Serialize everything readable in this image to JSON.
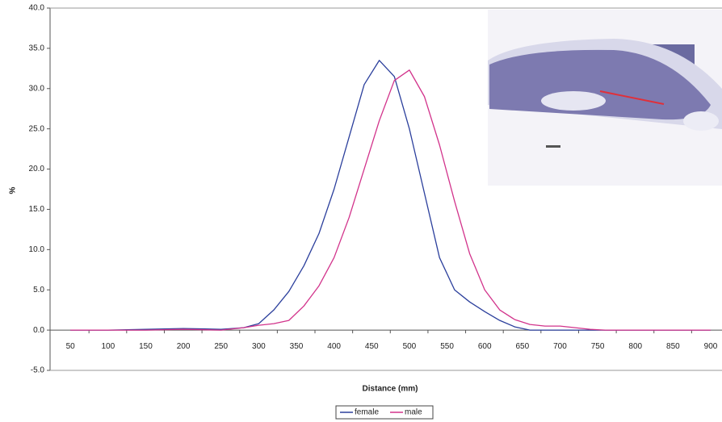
{
  "chart_data": {
    "type": "line",
    "xlabel": "Distance (mm)",
    "ylabel": "%",
    "x": [
      50,
      100,
      150,
      200,
      250,
      280,
      300,
      320,
      340,
      360,
      380,
      400,
      420,
      440,
      460,
      480,
      500,
      520,
      540,
      560,
      580,
      600,
      620,
      640,
      660,
      680,
      700,
      720,
      740,
      760,
      800,
      900
    ],
    "series": [
      {
        "name": "female",
        "color": "#2b3f9c",
        "values": [
          0,
          0,
          0.1,
          0.2,
          0.1,
          0.3,
          0.8,
          2.5,
          4.8,
          8,
          12,
          17.5,
          24,
          30.5,
          33.5,
          31.5,
          25,
          17,
          9,
          5,
          3.5,
          2.3,
          1.2,
          0.4,
          0,
          0,
          0,
          0,
          0,
          0,
          0,
          0
        ]
      },
      {
        "name": "male",
        "color": "#d2338b",
        "values": [
          0,
          0,
          0,
          0.1,
          0,
          0.3,
          0.6,
          0.8,
          1.2,
          3,
          5.5,
          9,
          14,
          20,
          26,
          31,
          32.3,
          29,
          23,
          16,
          9.5,
          5,
          2.5,
          1.3,
          0.7,
          0.5,
          0.5,
          0.3,
          0.1,
          0,
          0,
          0
        ]
      }
    ],
    "xlim": [
      23,
      915
    ],
    "xticks": [
      50,
      100,
      150,
      200,
      250,
      300,
      350,
      400,
      450,
      500,
      550,
      600,
      650,
      700,
      750,
      800,
      850,
      900
    ],
    "ylim": [
      -5,
      40
    ],
    "yticks": [
      {
        "value": -5,
        "label": "-5.0"
      },
      {
        "value": 0,
        "label": "0.0"
      },
      {
        "value": 5,
        "label": "5.0"
      },
      {
        "value": 10,
        "label": "10.0"
      },
      {
        "value": 15,
        "label": "15.0"
      },
      {
        "value": 20,
        "label": "20.0"
      },
      {
        "value": 25,
        "label": "25.0"
      },
      {
        "value": 30,
        "label": "30.0"
      },
      {
        "value": 35,
        "label": "35.0"
      },
      {
        "value": 40,
        "label": "40.0"
      }
    ],
    "grid": false,
    "legend": "bottom"
  }
}
